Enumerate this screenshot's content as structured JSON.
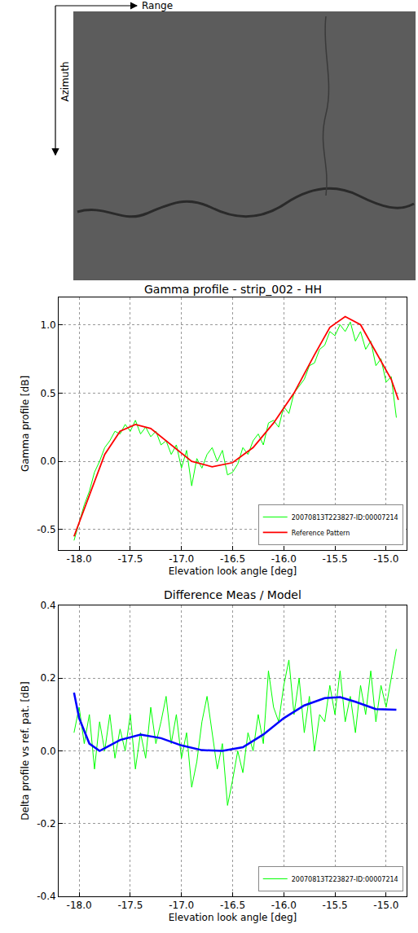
{
  "figure": {
    "range_label": "Range",
    "azimuth_label": "Azimuth"
  },
  "chart_data": [
    {
      "type": "line",
      "title": "Gamma profile - strip_002 - HH",
      "x_label": "Elevation look angle [deg]",
      "y_label": "Gamma profile [dB]",
      "xlim": [
        -18.2,
        -14.8
      ],
      "xticks": [
        {
          "value": -18,
          "label": "-18.0"
        },
        {
          "value": -17.5,
          "label": "-17.5"
        },
        {
          "value": -17,
          "label": "-17.0"
        },
        {
          "value": -16.5,
          "label": "-16.5"
        },
        {
          "value": -16,
          "label": "-16.0"
        },
        {
          "value": -15.5,
          "label": "-15.5"
        },
        {
          "value": -15,
          "label": "-15.0"
        }
      ],
      "ylim": [
        -0.65,
        1.2
      ],
      "yticks": [
        -0.5,
        {
          "value": 0,
          "label": "0.0"
        },
        0.5,
        {
          "value": 1,
          "label": "1.0"
        }
      ],
      "grid": true,
      "legend": "bottom right",
      "series": [
        {
          "name": "20070813T223827-ID:00007214",
          "color": "#00ff00",
          "x": [
            -18.05,
            -18.0,
            -17.95,
            -17.9,
            -17.85,
            -17.8,
            -17.75,
            -17.7,
            -17.65,
            -17.6,
            -17.55,
            -17.5,
            -17.45,
            -17.4,
            -17.35,
            -17.3,
            -17.25,
            -17.2,
            -17.15,
            -17.1,
            -17.05,
            -17.0,
            -16.95,
            -16.9,
            -16.85,
            -16.8,
            -16.75,
            -16.7,
            -16.65,
            -16.6,
            -16.55,
            -16.5,
            -16.45,
            -16.4,
            -16.35,
            -16.3,
            -16.25,
            -16.2,
            -16.15,
            -16.1,
            -16.05,
            -16.0,
            -15.95,
            -15.9,
            -15.85,
            -15.8,
            -15.75,
            -15.7,
            -15.65,
            -15.6,
            -15.55,
            -15.5,
            -15.45,
            -15.4,
            -15.35,
            -15.3,
            -15.25,
            -15.2,
            -15.15,
            -15.1,
            -15.05,
            -15.0,
            -14.95,
            -14.9
          ],
          "values": [
            -0.58,
            -0.45,
            -0.32,
            -0.22,
            -0.08,
            0.0,
            0.1,
            0.15,
            0.22,
            0.2,
            0.27,
            0.22,
            0.3,
            0.2,
            0.25,
            0.18,
            0.22,
            0.12,
            0.15,
            0.05,
            0.12,
            -0.05,
            0.08,
            -0.18,
            0.02,
            -0.05,
            0.05,
            0.1,
            0.0,
            0.08,
            -0.1,
            -0.08,
            -0.02,
            0.1,
            0.05,
            0.15,
            0.2,
            0.12,
            0.28,
            0.3,
            0.25,
            0.4,
            0.35,
            0.5,
            0.55,
            0.6,
            0.7,
            0.72,
            0.82,
            0.85,
            0.95,
            0.92,
            1.0,
            0.95,
            1.02,
            0.88,
            0.95,
            0.82,
            0.88,
            0.7,
            0.75,
            0.58,
            0.62,
            0.32
          ]
        },
        {
          "name": "Reference Pattern",
          "color": "#ff0000",
          "x": [
            -18.05,
            -17.9,
            -17.75,
            -17.6,
            -17.45,
            -17.3,
            -17.1,
            -16.9,
            -16.7,
            -16.5,
            -16.3,
            -16.1,
            -15.9,
            -15.7,
            -15.55,
            -15.4,
            -15.25,
            -15.1,
            -14.95,
            -14.88
          ],
          "values": [
            -0.55,
            -0.25,
            0.05,
            0.22,
            0.27,
            0.24,
            0.12,
            0.0,
            -0.04,
            -0.01,
            0.1,
            0.28,
            0.5,
            0.78,
            0.98,
            1.06,
            1.0,
            0.8,
            0.6,
            0.45
          ]
        }
      ]
    },
    {
      "type": "line",
      "title": "Difference Meas / Model",
      "x_label": "Elevation look angle [deg]",
      "y_label": "Delta profile vs ref. pat. [dB]",
      "xlim": [
        -18.2,
        -14.8
      ],
      "xticks": [
        {
          "value": -18,
          "label": "-18.0"
        },
        {
          "value": -17.5,
          "label": "-17.5"
        },
        {
          "value": -17,
          "label": "-17.0"
        },
        {
          "value": -16.5,
          "label": "-16.5"
        },
        {
          "value": -16,
          "label": "-16.0"
        },
        {
          "value": -15.5,
          "label": "-15.5"
        },
        {
          "value": -15,
          "label": "-15.0"
        }
      ],
      "ylim": [
        -0.4,
        0.4
      ],
      "yticks": [
        -0.4,
        -0.2,
        {
          "value": 0,
          "label": "0.0"
        },
        0.2,
        0.4
      ],
      "grid": true,
      "legend": "bottom right",
      "series": [
        {
          "name": "20070813T223827-ID:00007214",
          "color": "#00ff00",
          "x": [
            -18.05,
            -18.0,
            -17.95,
            -17.9,
            -17.85,
            -17.8,
            -17.75,
            -17.7,
            -17.65,
            -17.6,
            -17.55,
            -17.5,
            -17.45,
            -17.4,
            -17.35,
            -17.3,
            -17.25,
            -17.2,
            -17.15,
            -17.1,
            -17.05,
            -17.0,
            -16.95,
            -16.9,
            -16.85,
            -16.8,
            -16.75,
            -16.7,
            -16.65,
            -16.6,
            -16.55,
            -16.5,
            -16.45,
            -16.4,
            -16.35,
            -16.3,
            -16.25,
            -16.2,
            -16.15,
            -16.1,
            -16.05,
            -16.0,
            -15.95,
            -15.9,
            -15.85,
            -15.8,
            -15.75,
            -15.7,
            -15.65,
            -15.6,
            -15.55,
            -15.5,
            -15.45,
            -15.4,
            -15.35,
            -15.3,
            -15.25,
            -15.2,
            -15.15,
            -15.1,
            -15.05,
            -15.0,
            -14.95,
            -14.9
          ],
          "values": [
            0.05,
            0.12,
            0.02,
            0.1,
            -0.05,
            0.08,
            0.0,
            0.1,
            -0.02,
            0.06,
            0.0,
            0.1,
            -0.05,
            0.05,
            -0.02,
            0.12,
            0.02,
            0.08,
            0.15,
            0.02,
            0.1,
            -0.02,
            0.05,
            -0.1,
            -0.03,
            0.08,
            0.15,
            0.05,
            -0.05,
            0.02,
            -0.15,
            -0.08,
            0.0,
            -0.06,
            0.05,
            0.0,
            0.1,
            0.02,
            0.22,
            0.12,
            0.08,
            0.18,
            0.25,
            0.1,
            0.2,
            0.05,
            0.15,
            0.0,
            0.1,
            0.08,
            0.18,
            0.1,
            0.22,
            0.08,
            0.15,
            0.05,
            0.18,
            0.1,
            0.22,
            0.08,
            0.18,
            0.12,
            0.2,
            0.28
          ]
        },
        {
          "color": "#0000ff",
          "x": [
            -18.05,
            -18.0,
            -17.9,
            -17.8,
            -17.6,
            -17.4,
            -17.2,
            -17.0,
            -16.8,
            -16.6,
            -16.4,
            -16.2,
            -16.0,
            -15.8,
            -15.6,
            -15.45,
            -15.3,
            -15.1,
            -14.9
          ],
          "values": [
            0.16,
            0.09,
            0.02,
            0.0,
            0.03,
            0.045,
            0.035,
            0.015,
            0.002,
            0.0,
            0.01,
            0.045,
            0.09,
            0.125,
            0.145,
            0.148,
            0.135,
            0.115,
            0.113
          ]
        }
      ]
    }
  ]
}
